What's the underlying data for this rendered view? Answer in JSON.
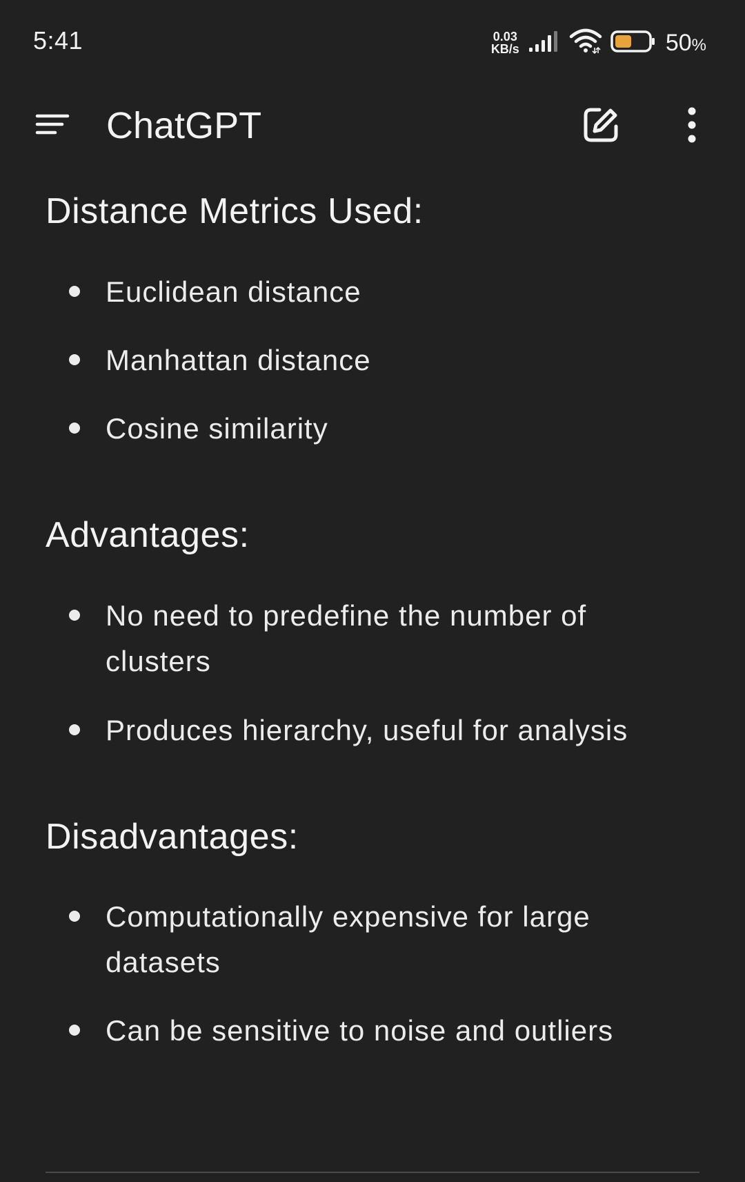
{
  "status_bar": {
    "time": "5:41",
    "net_speed_value": "0.03",
    "net_speed_unit": "KB/s",
    "battery_percent": "50",
    "battery_percent_sign": "%",
    "battery_level": 0.5,
    "battery_color": "#e8a33a",
    "icons": [
      "signal-icon",
      "wifi-icon",
      "battery-icon"
    ]
  },
  "app_bar": {
    "title": "ChatGPT",
    "icons": [
      "menu-icon",
      "new-chat-icon",
      "more-vertical-icon"
    ]
  },
  "message": {
    "sections": [
      {
        "heading": "Distance Metrics Used:",
        "items": [
          "Euclidean distance",
          "Manhattan distance",
          "Cosine similarity"
        ]
      },
      {
        "heading": "Advantages:",
        "items": [
          "No need to predefine the number of clusters",
          "Produces hierarchy, useful for analysis"
        ]
      },
      {
        "heading": "Disadvantages:",
        "items": [
          "Computationally expensive for large datasets",
          "Can be sensitive to noise and outliers"
        ]
      }
    ]
  }
}
